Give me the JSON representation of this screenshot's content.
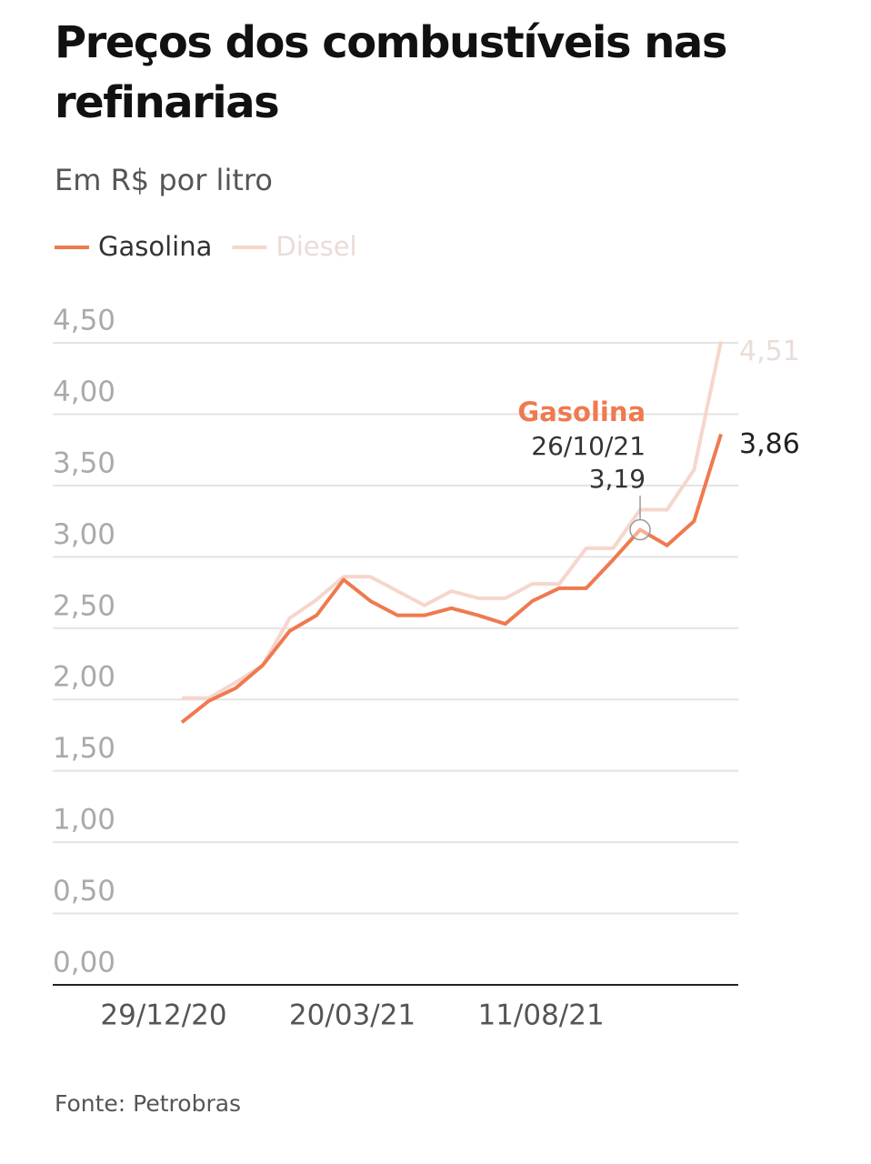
{
  "chart_data": {
    "type": "line",
    "title": "Preços dos combustíveis nas refinarias",
    "subtitle": "Em R$ por litro",
    "source": "Fonte: Petrobras",
    "categories": [
      "29/12/20",
      null,
      null,
      null,
      null,
      null,
      null,
      "20/03/21",
      null,
      null,
      null,
      null,
      null,
      null,
      "11/08/21",
      null,
      null,
      null,
      null,
      null,
      null
    ],
    "series": [
      {
        "name": "Gasolina",
        "color": "#ef7a4f",
        "values": [
          1.84,
          1.99,
          2.08,
          2.24,
          2.48,
          2.59,
          2.84,
          2.69,
          2.59,
          2.59,
          2.64,
          2.59,
          2.53,
          2.69,
          2.78,
          2.78,
          2.98,
          3.19,
          3.08,
          3.25,
          3.86
        ],
        "value_labels": [
          null,
          null,
          null,
          null,
          null,
          null,
          null,
          null,
          null,
          null,
          null,
          null,
          null,
          null,
          null,
          null,
          null,
          "3,19",
          null,
          null,
          "3,86"
        ]
      },
      {
        "name": "Diesel",
        "color": "#f6d6cc",
        "values": [
          2.01,
          2.01,
          2.12,
          2.24,
          2.57,
          2.7,
          2.86,
          2.86,
          2.76,
          2.66,
          2.76,
          2.71,
          2.71,
          2.81,
          2.81,
          3.06,
          3.06,
          3.33,
          3.33,
          3.61,
          4.51
        ],
        "value_labels": [
          null,
          null,
          null,
          null,
          null,
          null,
          null,
          null,
          null,
          null,
          null,
          null,
          null,
          null,
          null,
          null,
          null,
          null,
          null,
          null,
          "4,51"
        ]
      }
    ],
    "annotation": {
      "series": 0,
      "index": 17,
      "label": "Gasolina",
      "date": "26/10/21"
    },
    "ylim": [
      0,
      4.5
    ],
    "yticks": [
      {
        "value": 0,
        "label": "0,00"
      },
      {
        "value": 0.5,
        "label": "0,50"
      },
      {
        "value": 1,
        "label": "1,00"
      },
      {
        "value": 1.5,
        "label": "1,50"
      },
      {
        "value": 2,
        "label": "2,00"
      },
      {
        "value": 2.5,
        "label": "2,50"
      },
      {
        "value": 3,
        "label": "3,00"
      },
      {
        "value": 3.5,
        "label": "3,50"
      },
      {
        "value": 4,
        "label": "4,00"
      },
      {
        "value": 4.5,
        "label": "4,50"
      }
    ],
    "grid": true
  }
}
